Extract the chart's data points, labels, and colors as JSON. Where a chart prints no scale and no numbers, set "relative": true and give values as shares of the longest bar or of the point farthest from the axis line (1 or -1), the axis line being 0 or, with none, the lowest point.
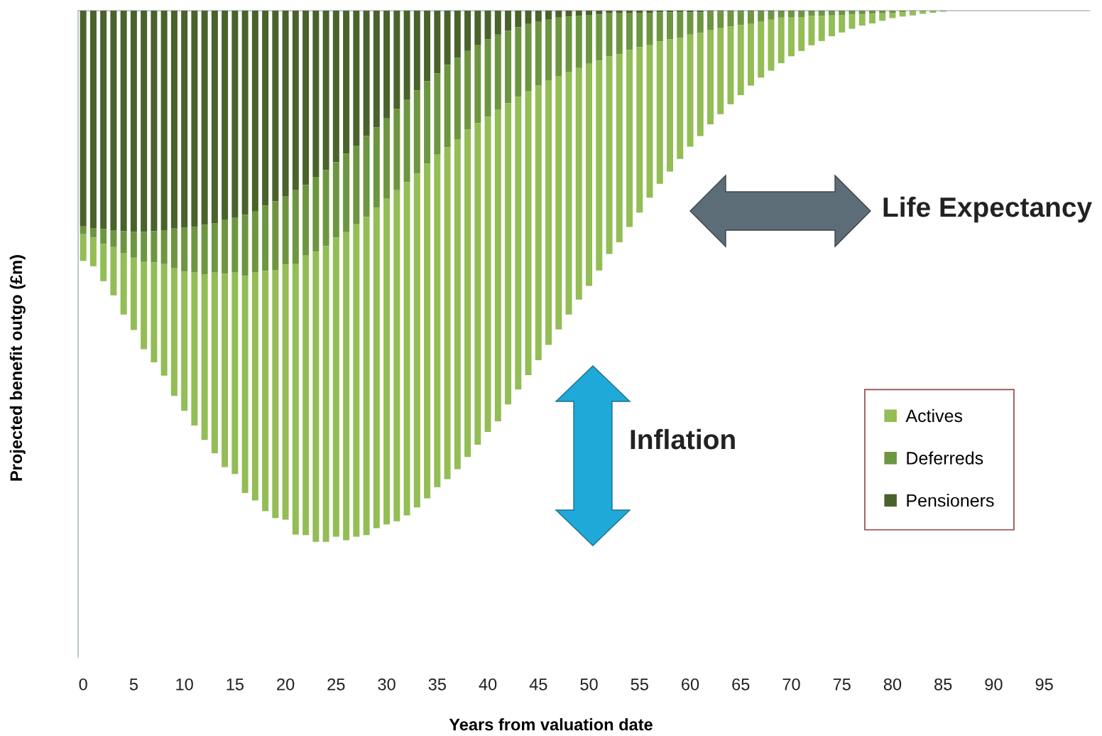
{
  "chart_data": {
    "type": "bar",
    "stacked": true,
    "relative": true,
    "xlabel": "Years from valuation date",
    "ylabel": "Projected benefit outgo (£m)",
    "x": [
      0,
      1,
      2,
      3,
      4,
      5,
      6,
      7,
      8,
      9,
      10,
      11,
      12,
      13,
      14,
      15,
      16,
      17,
      18,
      19,
      20,
      21,
      22,
      23,
      24,
      25,
      26,
      27,
      28,
      29,
      30,
      31,
      32,
      33,
      34,
      35,
      36,
      37,
      38,
      39,
      40,
      41,
      42,
      43,
      44,
      45,
      46,
      47,
      48,
      49,
      50,
      51,
      52,
      53,
      54,
      55,
      56,
      57,
      58,
      59,
      60,
      61,
      62,
      63,
      64,
      65,
      66,
      67,
      68,
      69,
      70,
      71,
      72,
      73,
      74,
      75,
      76,
      77,
      78,
      79,
      80,
      81,
      82,
      83,
      84,
      85
    ],
    "xlim": [
      -0.5,
      99.5
    ],
    "xticks": [
      0,
      5,
      10,
      15,
      20,
      25,
      30,
      35,
      40,
      45,
      50,
      55,
      60,
      65,
      70,
      75,
      80,
      85,
      90,
      95
    ],
    "legend": "right",
    "annotations": [
      "Life Expectancy",
      "Inflation"
    ],
    "series": [
      {
        "name": "Pensioners",
        "color": "#4a622b",
        "values": [
          -0.405,
          -0.409,
          -0.411,
          -0.413,
          -0.415,
          -0.416,
          -0.416,
          -0.415,
          -0.413,
          -0.41,
          -0.408,
          -0.407,
          -0.403,
          -0.4,
          -0.393,
          -0.389,
          -0.384,
          -0.377,
          -0.367,
          -0.359,
          -0.35,
          -0.338,
          -0.328,
          -0.313,
          -0.3,
          -0.285,
          -0.269,
          -0.254,
          -0.236,
          -0.22,
          -0.202,
          -0.185,
          -0.167,
          -0.15,
          -0.133,
          -0.118,
          -0.102,
          -0.089,
          -0.075,
          -0.064,
          -0.054,
          -0.045,
          -0.038,
          -0.031,
          -0.025,
          -0.02,
          -0.016,
          -0.013,
          -0.011,
          -0.01,
          -0.008,
          -0.007,
          -0.005,
          -0.005,
          -0.004,
          -0.004,
          -0.004,
          -0.003,
          -0.003,
          -0.003,
          -0.003,
          -0.003,
          -0.002,
          -0.002,
          -0.002,
          -0.002,
          -0.002,
          -0.002,
          -0.002,
          -0.001,
          -0.001,
          -0.001,
          -0.001,
          -0.001,
          -0.001,
          -0.001,
          -0.001,
          -0.001,
          -0.001,
          -0.001,
          null,
          null,
          null,
          null,
          null,
          null
        ]
      },
      {
        "name": "Deferreds",
        "color": "#6d9640",
        "values": [
          -0.016,
          -0.018,
          -0.028,
          -0.032,
          -0.041,
          -0.049,
          -0.057,
          -0.059,
          -0.064,
          -0.074,
          -0.083,
          -0.085,
          -0.093,
          -0.093,
          -0.102,
          -0.104,
          -0.115,
          -0.115,
          -0.123,
          -0.129,
          -0.128,
          -0.138,
          -0.133,
          -0.141,
          -0.143,
          -0.142,
          -0.148,
          -0.148,
          -0.152,
          -0.151,
          -0.152,
          -0.153,
          -0.156,
          -0.157,
          -0.155,
          -0.152,
          -0.155,
          -0.153,
          -0.149,
          -0.148,
          -0.146,
          -0.141,
          -0.136,
          -0.131,
          -0.126,
          -0.121,
          -0.115,
          -0.11,
          -0.104,
          -0.098,
          -0.092,
          -0.087,
          -0.081,
          -0.077,
          -0.07,
          -0.065,
          -0.06,
          -0.055,
          -0.051,
          -0.048,
          -0.042,
          -0.039,
          -0.034,
          -0.03,
          -0.028,
          -0.025,
          -0.022,
          -0.018,
          -0.015,
          -0.012,
          -0.012,
          -0.011,
          -0.009,
          -0.009,
          -0.008,
          -0.007,
          -0.006,
          -0.006,
          -0.005,
          -0.004,
          -0.004,
          -0.003,
          -0.002,
          -0.002,
          -0.001,
          -0.001
        ]
      },
      {
        "name": "Actives",
        "color": "#93bd55",
        "values": [
          -0.05,
          -0.054,
          -0.07,
          -0.091,
          -0.116,
          -0.136,
          -0.164,
          -0.188,
          -0.21,
          -0.241,
          -0.262,
          -0.289,
          -0.312,
          -0.34,
          -0.364,
          -0.379,
          -0.409,
          -0.43,
          -0.452,
          -0.467,
          -0.48,
          -0.51,
          -0.526,
          -0.546,
          -0.557,
          -0.563,
          -0.58,
          -0.588,
          -0.599,
          -0.603,
          -0.613,
          -0.623,
          -0.627,
          -0.628,
          -0.63,
          -0.627,
          -0.625,
          -0.621,
          -0.616,
          -0.605,
          -0.593,
          -0.587,
          -0.567,
          -0.551,
          -0.535,
          -0.517,
          -0.498,
          -0.477,
          -0.457,
          -0.436,
          -0.418,
          -0.395,
          -0.372,
          -0.354,
          -0.333,
          -0.311,
          -0.288,
          -0.268,
          -0.249,
          -0.228,
          -0.211,
          -0.194,
          -0.178,
          -0.163,
          -0.146,
          -0.132,
          -0.117,
          -0.106,
          -0.096,
          -0.086,
          -0.073,
          -0.064,
          -0.055,
          -0.047,
          -0.039,
          -0.033,
          -0.027,
          -0.021,
          -0.018,
          -0.014,
          -0.01,
          -0.008,
          -0.007,
          -0.004,
          -0.003,
          -0.001
        ]
      }
    ]
  }
}
